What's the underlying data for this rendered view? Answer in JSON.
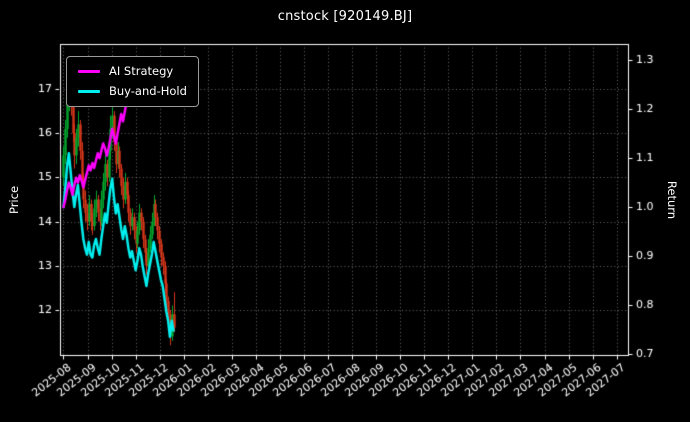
{
  "title": "cnstock [920149.BJ]",
  "axes": {
    "left_label": "Price",
    "right_label": "Return",
    "price_ticks": [
      12,
      13,
      14,
      15,
      16,
      17
    ],
    "return_ticks": [
      0.7,
      0.8,
      0.9,
      1.0,
      1.1,
      1.2,
      1.3
    ],
    "x_ticks": [
      "2025-08",
      "2025-09",
      "2025-10",
      "2025-11",
      "2025-12",
      "2026-01",
      "2026-02",
      "2026-03",
      "2026-04",
      "2026-05",
      "2026-06",
      "2026-07",
      "2026-08",
      "2026-09",
      "2026-10",
      "2026-11",
      "2026-12",
      "2027-01",
      "2027-02",
      "2027-03",
      "2027-04",
      "2027-05",
      "2027-06",
      "2027-07"
    ]
  },
  "legend": {
    "items": [
      {
        "label": "AI Strategy",
        "color": "#ff00ff"
      },
      {
        "label": "Buy-and-Hold",
        "color": "#00efef"
      }
    ]
  },
  "colors": {
    "background": "#000000",
    "text": "#ffffff",
    "spine": "#ffffff",
    "grid": "rgba(255,255,255,0.42)",
    "up": "#00a82d",
    "down": "#d6351a",
    "ai_strategy": "#ff00ff",
    "buy_and_hold": "#00efef"
  },
  "chart_data": {
    "type": "candlestick+line",
    "title": "cnstock [920149.BJ]",
    "xlabel": "",
    "ylabel_left": "Price",
    "ylabel_right": "Return",
    "x_unit": "months since 2025-08-01",
    "x_axis": {
      "min": -0.145,
      "max": 23.47
    },
    "price_axis": {
      "min": 10.98,
      "max": 18.02
    },
    "return_axis": {
      "min": 0.698,
      "max": 1.333
    },
    "grid": "dotted",
    "legend_position": "upper-left",
    "candles": {
      "x_start": 0,
      "x_step": 0.075,
      "ohlc": [
        [
          15.0,
          15.7,
          14.8,
          15.5
        ],
        [
          15.5,
          16.3,
          15.3,
          16.1
        ],
        [
          16.1,
          17.1,
          15.9,
          16.8
        ],
        [
          16.8,
          17.5,
          16.5,
          17.2
        ],
        [
          17.2,
          17.4,
          16.4,
          16.6
        ],
        [
          16.6,
          16.9,
          15.8,
          16.0
        ],
        [
          16.0,
          16.2,
          15.2,
          15.5
        ],
        [
          15.5,
          16.1,
          15.3,
          15.9
        ],
        [
          15.9,
          16.5,
          15.7,
          16.2
        ],
        [
          16.2,
          16.3,
          15.4,
          15.6
        ],
        [
          15.6,
          15.8,
          14.8,
          15.0
        ],
        [
          15.0,
          15.1,
          14.3,
          14.5
        ],
        [
          14.5,
          14.7,
          14.0,
          14.2
        ],
        [
          14.2,
          14.4,
          13.8,
          14.0
        ],
        [
          14.0,
          14.6,
          13.9,
          14.4
        ],
        [
          14.4,
          14.5,
          13.8,
          14.0
        ],
        [
          14.0,
          14.2,
          13.7,
          13.9
        ],
        [
          13.9,
          14.5,
          13.8,
          14.3
        ],
        [
          14.3,
          14.7,
          14.1,
          14.5
        ],
        [
          14.5,
          14.6,
          14.0,
          14.2
        ],
        [
          14.2,
          14.3,
          13.8,
          14.0
        ],
        [
          14.0,
          14.7,
          13.9,
          14.5
        ],
        [
          14.5,
          15.1,
          14.3,
          14.9
        ],
        [
          14.9,
          15.5,
          14.7,
          15.3
        ],
        [
          15.3,
          15.4,
          14.8,
          15.0
        ],
        [
          15.0,
          15.8,
          14.9,
          15.6
        ],
        [
          15.6,
          16.4,
          15.4,
          16.1
        ],
        [
          16.1,
          17.0,
          15.9,
          16.4
        ],
        [
          16.4,
          16.5,
          15.6,
          15.8
        ],
        [
          15.8,
          15.9,
          15.1,
          15.3
        ],
        [
          15.3,
          15.8,
          15.2,
          15.6
        ],
        [
          15.6,
          15.7,
          15.0,
          15.2
        ],
        [
          15.2,
          15.3,
          14.6,
          14.8
        ],
        [
          14.8,
          15.0,
          14.3,
          14.5
        ],
        [
          14.5,
          15.1,
          14.4,
          14.9
        ],
        [
          14.9,
          15.0,
          14.4,
          14.6
        ],
        [
          14.6,
          14.7,
          14.0,
          14.2
        ],
        [
          14.2,
          14.3,
          13.7,
          13.9
        ],
        [
          13.9,
          14.3,
          13.8,
          14.1
        ],
        [
          14.1,
          14.2,
          13.6,
          13.8
        ],
        [
          13.8,
          13.9,
          13.3,
          13.5
        ],
        [
          13.5,
          14.0,
          13.4,
          13.8
        ],
        [
          13.8,
          14.4,
          13.7,
          14.2
        ],
        [
          14.2,
          14.3,
          13.8,
          14.0
        ],
        [
          14.0,
          14.1,
          13.4,
          13.6
        ],
        [
          13.6,
          13.7,
          13.1,
          13.3
        ],
        [
          13.3,
          13.4,
          12.8,
          13.0
        ],
        [
          13.0,
          13.6,
          12.9,
          13.4
        ],
        [
          13.4,
          13.9,
          13.3,
          13.7
        ],
        [
          13.7,
          14.2,
          13.6,
          14.0
        ],
        [
          14.0,
          14.6,
          13.9,
          14.4
        ],
        [
          14.4,
          14.5,
          13.9,
          14.1
        ],
        [
          14.1,
          14.2,
          13.6,
          13.8
        ],
        [
          13.8,
          13.9,
          13.3,
          13.5
        ],
        [
          13.5,
          13.6,
          13.0,
          13.2
        ],
        [
          13.2,
          13.3,
          12.8,
          13.0
        ],
        [
          13.0,
          13.1,
          12.4,
          12.6
        ],
        [
          12.6,
          12.7,
          12.0,
          12.2
        ],
        [
          12.2,
          12.3,
          11.7,
          11.9
        ],
        [
          11.9,
          12.0,
          11.2,
          11.4
        ],
        [
          11.4,
          12.1,
          11.3,
          11.9
        ],
        [
          11.9,
          12.4,
          11.5,
          11.6
        ]
      ]
    },
    "series": [
      {
        "name": "AI Strategy",
        "axis": "return",
        "color": "#ff00ff",
        "x_start": 0,
        "x_step": 0.075,
        "values": [
          1.0,
          1.015,
          1.035,
          1.05,
          1.04,
          1.025,
          1.045,
          1.06,
          1.05,
          1.065,
          1.055,
          1.04,
          1.055,
          1.07,
          1.085,
          1.075,
          1.09,
          1.08,
          1.095,
          1.11,
          1.1,
          1.115,
          1.13,
          1.12,
          1.105,
          1.12,
          1.14,
          1.16,
          1.145,
          1.13,
          1.15,
          1.17,
          1.19,
          1.175,
          1.195,
          1.215,
          1.235,
          1.22,
          1.24,
          1.225,
          1.21
        ]
      },
      {
        "name": "Buy-and-Hold",
        "axis": "return",
        "color": "#00efef",
        "x_start": 0,
        "x_step": 0.075,
        "values": [
          1.0,
          1.039,
          1.084,
          1.11,
          1.071,
          1.032,
          1.0,
          1.026,
          1.045,
          1.006,
          0.968,
          0.935,
          0.916,
          0.903,
          0.929,
          0.903,
          0.897,
          0.923,
          0.935,
          0.916,
          0.903,
          0.935,
          0.961,
          0.987,
          0.968,
          1.006,
          1.039,
          1.058,
          1.019,
          0.987,
          1.006,
          0.981,
          0.955,
          0.935,
          0.961,
          0.942,
          0.916,
          0.897,
          0.91,
          0.89,
          0.871,
          0.89,
          0.916,
          0.903,
          0.877,
          0.858,
          0.839,
          0.865,
          0.884,
          0.903,
          0.929,
          0.91,
          0.89,
          0.871,
          0.852,
          0.839,
          0.813,
          0.787,
          0.768,
          0.735,
          0.768,
          0.748
        ]
      }
    ]
  }
}
